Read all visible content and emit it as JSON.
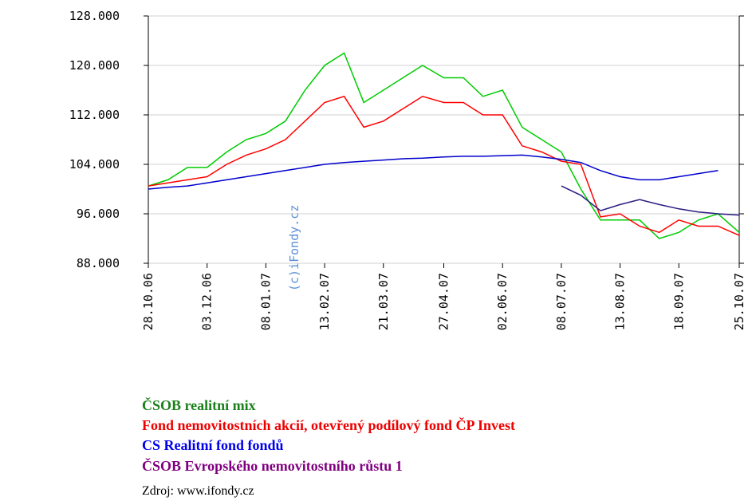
{
  "chart_data": {
    "type": "line",
    "x": [
      "2006-10-28",
      "2006-11-09",
      "2006-11-21",
      "2006-12-03",
      "2006-12-15",
      "2006-12-27",
      "2007-01-08",
      "2007-01-20",
      "2007-02-01",
      "2007-02-13",
      "2007-02-25",
      "2007-03-09",
      "2007-03-21",
      "2007-04-02",
      "2007-04-14",
      "2007-04-27",
      "2007-05-09",
      "2007-05-21",
      "2007-06-02",
      "2007-06-14",
      "2007-06-26",
      "2007-07-08",
      "2007-07-20",
      "2007-08-01",
      "2007-08-13",
      "2007-08-25",
      "2007-09-06",
      "2007-09-18",
      "2007-09-30",
      "2007-10-12",
      "2007-10-25"
    ],
    "series": [
      {
        "name": "ČSOB realitní mix",
        "color": "#00cc00",
        "legend_color": "#1a801a",
        "values": [
          100.5,
          101.5,
          103.5,
          103.5,
          106,
          108,
          109,
          111,
          116,
          120,
          122,
          114,
          116,
          118,
          120,
          118,
          118,
          115,
          116,
          110,
          108,
          106,
          100,
          95,
          95,
          95,
          92,
          93,
          95,
          96,
          93
        ]
      },
      {
        "name": "Fond nemovitostních akcií, otevřený podílový fond ČP Invest",
        "color": "#ff0000",
        "legend_color": "#ee0000",
        "values": [
          100.5,
          101,
          101.5,
          102,
          104,
          105.5,
          106.5,
          108,
          111,
          114,
          115,
          110,
          111,
          113,
          115,
          114,
          114,
          112,
          112,
          107,
          106,
          104.5,
          104,
          95.5,
          96,
          94,
          93,
          95,
          94,
          94,
          92.5
        ]
      },
      {
        "name": "CS Realitní fond fondů",
        "color": "#0000cc",
        "legend_color": "#0000ee",
        "values": [
          100,
          100.3,
          100.5,
          101,
          101.5,
          102,
          102.5,
          103,
          103.5,
          104,
          104.3,
          104.5,
          104.7,
          104.9,
          105,
          105.2,
          105.3,
          105.3,
          105.4,
          105.5,
          105.2,
          104.8,
          104.3,
          103,
          102,
          101.5,
          101.5,
          102,
          102.5,
          103,
          null
        ]
      },
      {
        "name": "ČSOB Evropského nemovitostního růstu 1",
        "color": "#2a1a80",
        "legend_color": "#800080",
        "values": [
          null,
          null,
          null,
          null,
          null,
          null,
          null,
          null,
          null,
          null,
          null,
          null,
          null,
          null,
          null,
          null,
          null,
          null,
          null,
          null,
          null,
          100.5,
          99,
          96.5,
          97.5,
          98.3,
          97.5,
          96.8,
          96.3,
          96,
          95.8
        ]
      }
    ],
    "xlim": [
      "2006-10-28",
      "2007-10-25"
    ],
    "xticks": [
      {
        "value": "2006-10-28",
        "label": "28.10.06"
      },
      {
        "value": "2006-12-03",
        "label": "03.12.06"
      },
      {
        "value": "2007-01-08",
        "label": "08.01.07"
      },
      {
        "value": "2007-02-13",
        "label": "13.02.07"
      },
      {
        "value": "2007-03-21",
        "label": "21.03.07"
      },
      {
        "value": "2007-04-27",
        "label": "27.04.07"
      },
      {
        "value": "2007-06-02",
        "label": "02.06.07"
      },
      {
        "value": "2007-07-08",
        "label": "08.07.07"
      },
      {
        "value": "2007-08-13",
        "label": "13.08.07"
      },
      {
        "value": "2007-09-18",
        "label": "18.09.07"
      },
      {
        "value": "2007-10-25",
        "label": "25.10.07"
      }
    ],
    "ylim": [
      88,
      128
    ],
    "yticks": [
      {
        "value": 88,
        "label": "88.000"
      },
      {
        "value": 96,
        "label": "96.000"
      },
      {
        "value": 104,
        "label": "104.000"
      },
      {
        "value": 112,
        "label": "112.000"
      },
      {
        "value": 120,
        "label": "120.000"
      },
      {
        "value": 128,
        "label": "128.000"
      }
    ],
    "grid": true
  },
  "watermark": "(c)iFondy.cz",
  "source": "Zdroj: www.ifondy.cz"
}
